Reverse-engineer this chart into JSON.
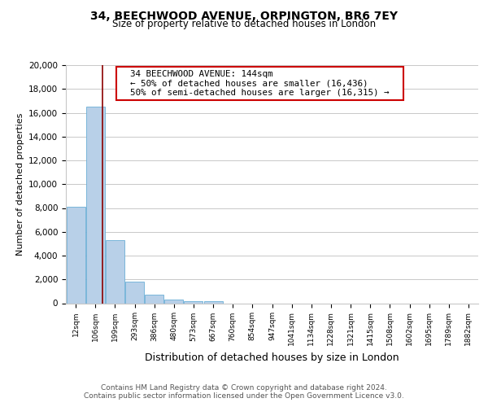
{
  "title": "34, BEECHWOOD AVENUE, ORPINGTON, BR6 7EY",
  "subtitle": "Size of property relative to detached houses in London",
  "xlabel": "Distribution of detached houses by size in London",
  "ylabel": "Number of detached properties",
  "bar_labels": [
    "12sqm",
    "106sqm",
    "199sqm",
    "293sqm",
    "386sqm",
    "480sqm",
    "573sqm",
    "667sqm",
    "760sqm",
    "854sqm",
    "947sqm",
    "1041sqm",
    "1134sqm",
    "1228sqm",
    "1321sqm",
    "1415sqm",
    "1508sqm",
    "1602sqm",
    "1695sqm",
    "1789sqm",
    "1882sqm"
  ],
  "bar_values": [
    8100,
    16500,
    5300,
    1800,
    750,
    280,
    200,
    200,
    0,
    0,
    0,
    0,
    0,
    0,
    0,
    0,
    0,
    0,
    0,
    0,
    0
  ],
  "bar_color": "#b8d0e8",
  "bar_edge_color": "#6aaed6",
  "ylim": [
    0,
    20000
  ],
  "yticks": [
    0,
    2000,
    4000,
    6000,
    8000,
    10000,
    12000,
    14000,
    16000,
    18000,
    20000
  ],
  "property_line_x": 1.38,
  "property_line_color": "#8b0000",
  "annotation_title": "34 BEECHWOOD AVENUE: 144sqm",
  "annotation_line1": "← 50% of detached houses are smaller (16,436)",
  "annotation_line2": "50% of semi-detached houses are larger (16,315) →",
  "annotation_box_color": "#ffffff",
  "annotation_box_edge": "#cc0000",
  "footer1": "Contains HM Land Registry data © Crown copyright and database right 2024.",
  "footer2": "Contains public sector information licensed under the Open Government Licence v3.0.",
  "background_color": "#ffffff",
  "grid_color": "#c8c8c8"
}
